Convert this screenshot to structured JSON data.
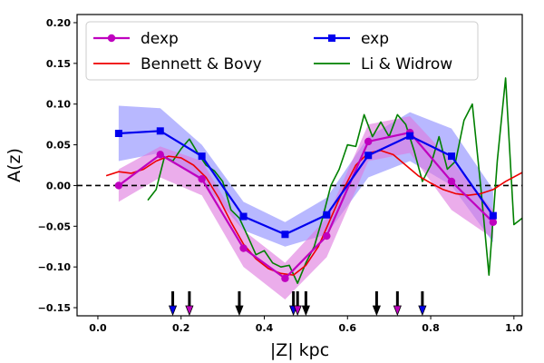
{
  "chart_data": {
    "type": "line",
    "xlabel": "|Z| kpc",
    "ylabel": "A(z)",
    "xlim": [
      -0.05,
      1.02
    ],
    "ylim": [
      -0.16,
      0.21
    ],
    "x_ticks": [
      0.0,
      0.2,
      0.4,
      0.6,
      0.8,
      1.0
    ],
    "x_tick_labels": [
      "0.0",
      "0.2",
      "0.4",
      "0.6",
      "0.8",
      "1.0"
    ],
    "y_ticks": [
      -0.15,
      -0.1,
      -0.05,
      0.0,
      0.05,
      0.1,
      0.15,
      0.2
    ],
    "y_tick_labels": [
      "−0.15",
      "−0.10",
      "−0.05",
      "0.00",
      "0.05",
      "0.10",
      "0.15",
      "0.20"
    ],
    "reference_line": {
      "y": 0.0,
      "style": "dashed",
      "color": "#000000"
    },
    "legend_position": "top",
    "series": [
      {
        "name": "dexp",
        "color": "#bf00bf",
        "marker": "circle",
        "x": [
          0.05,
          0.15,
          0.25,
          0.35,
          0.45,
          0.55,
          0.65,
          0.75,
          0.85,
          0.95
        ],
        "y": [
          0.0,
          0.038,
          0.008,
          -0.077,
          -0.114,
          -0.062,
          0.054,
          0.065,
          0.005,
          -0.045
        ],
        "band_lower": [
          -0.02,
          0.01,
          -0.012,
          -0.1,
          -0.14,
          -0.088,
          0.03,
          0.04,
          -0.03,
          -0.065
        ],
        "band_upper": [
          0.02,
          0.048,
          0.03,
          -0.055,
          -0.095,
          -0.04,
          0.075,
          0.085,
          0.03,
          -0.03
        ],
        "band_color": "#dd77dd"
      },
      {
        "name": "exp",
        "color": "#0000ee",
        "marker": "square",
        "x": [
          0.05,
          0.15,
          0.25,
          0.35,
          0.45,
          0.55,
          0.65,
          0.75,
          0.85,
          0.95
        ],
        "y": [
          0.064,
          0.067,
          0.036,
          -0.038,
          -0.06,
          -0.036,
          0.037,
          0.061,
          0.036,
          -0.037
        ],
        "band_lower": [
          0.03,
          0.04,
          0.005,
          -0.055,
          -0.075,
          -0.06,
          0.01,
          0.03,
          0.0,
          -0.07
        ],
        "band_upper": [
          0.098,
          0.095,
          0.05,
          -0.02,
          -0.045,
          -0.015,
          0.06,
          0.09,
          0.07,
          -0.005
        ],
        "band_color": "#8888ff"
      },
      {
        "name": "Bennett & Bovy",
        "color": "#ee0000",
        "marker": "none",
        "x": [
          0.02,
          0.05,
          0.08,
          0.11,
          0.14,
          0.17,
          0.2,
          0.23,
          0.26,
          0.29,
          0.32,
          0.35,
          0.38,
          0.41,
          0.44,
          0.47,
          0.5,
          0.53,
          0.56,
          0.59,
          0.62,
          0.65,
          0.68,
          0.71,
          0.74,
          0.77,
          0.8,
          0.83,
          0.86,
          0.89,
          0.92,
          0.95,
          0.98,
          1.02
        ],
        "y": [
          0.012,
          0.017,
          0.015,
          0.02,
          0.03,
          0.036,
          0.034,
          0.025,
          0.01,
          -0.015,
          -0.045,
          -0.072,
          -0.09,
          -0.102,
          -0.108,
          -0.11,
          -0.098,
          -0.075,
          -0.04,
          -0.005,
          0.025,
          0.04,
          0.043,
          0.038,
          0.025,
          0.012,
          0.003,
          -0.005,
          -0.01,
          -0.012,
          -0.01,
          -0.005,
          0.005,
          0.016
        ]
      },
      {
        "name": "Li & Widrow",
        "color": "#008000",
        "marker": "none",
        "x": [
          0.12,
          0.14,
          0.16,
          0.18,
          0.2,
          0.22,
          0.24,
          0.26,
          0.28,
          0.3,
          0.32,
          0.34,
          0.36,
          0.38,
          0.4,
          0.42,
          0.44,
          0.46,
          0.48,
          0.5,
          0.52,
          0.54,
          0.56,
          0.58,
          0.6,
          0.62,
          0.64,
          0.66,
          0.68,
          0.7,
          0.72,
          0.74,
          0.76,
          0.78,
          0.8,
          0.82,
          0.84,
          0.86,
          0.88,
          0.9,
          0.92,
          0.94,
          0.96,
          0.98,
          1.0,
          1.02
        ],
        "y": [
          -0.018,
          -0.005,
          0.035,
          0.03,
          0.045,
          0.057,
          0.04,
          0.025,
          0.018,
          0.005,
          -0.03,
          -0.04,
          -0.062,
          -0.085,
          -0.08,
          -0.095,
          -0.1,
          -0.098,
          -0.12,
          -0.095,
          -0.075,
          -0.04,
          0.0,
          0.02,
          0.05,
          0.048,
          0.087,
          0.06,
          0.078,
          0.06,
          0.087,
          0.075,
          0.043,
          0.005,
          0.025,
          0.06,
          0.02,
          0.03,
          0.08,
          0.1,
          0.0,
          -0.11,
          0.03,
          0.132,
          -0.048,
          -0.04
        ]
      }
    ],
    "arrows": [
      {
        "x": 0.18,
        "color": "#0000ee"
      },
      {
        "x": 0.22,
        "color": "#bf00bf"
      },
      {
        "x": 0.34,
        "color": "#000000"
      },
      {
        "x": 0.47,
        "color": "#0000ee"
      },
      {
        "x": 0.48,
        "color": "#bf00bf"
      },
      {
        "x": 0.5,
        "color": "#000000"
      },
      {
        "x": 0.67,
        "color": "#000000"
      },
      {
        "x": 0.72,
        "color": "#bf00bf"
      },
      {
        "x": 0.78,
        "color": "#0000ee"
      }
    ]
  }
}
